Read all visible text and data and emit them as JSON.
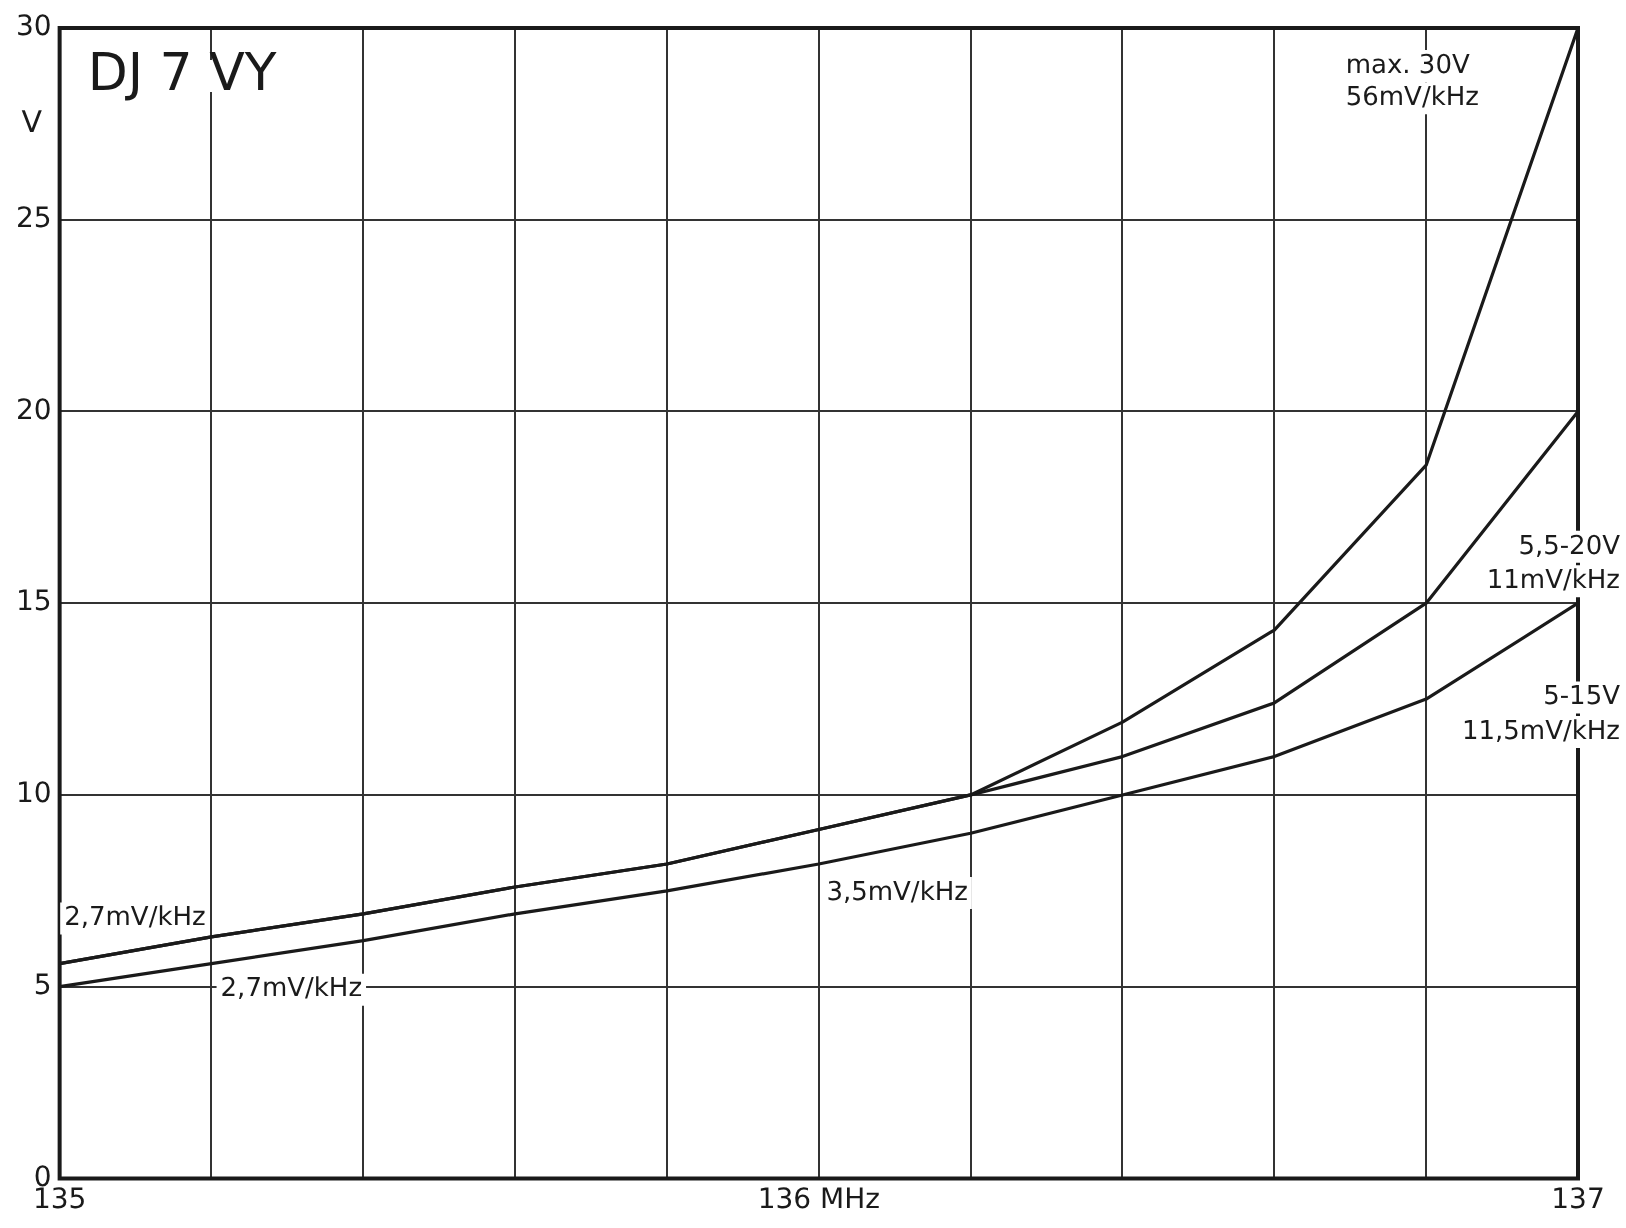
{
  "chart_data": {
    "type": "line",
    "title": "DJ 7 VY",
    "ylabel": "V",
    "x": [
      135,
      135.2,
      135.4,
      135.6,
      135.8,
      136,
      136.2,
      136.4,
      136.6,
      136.8,
      137
    ],
    "series": [
      {
        "color": "#1a1a1a",
        "values": [
          5.6,
          6.3,
          6.9,
          7.6,
          8.2,
          9.1,
          10,
          11.9,
          14.3,
          18.6,
          30
        ]
      },
      {
        "color": "#1a1a1a",
        "values": [
          5.6,
          6.3,
          6.9,
          7.6,
          8.2,
          9.1,
          10,
          11,
          12.4,
          15,
          20
        ]
      },
      {
        "color": "#1a1a1a",
        "values": [
          5,
          5.6,
          6.2,
          6.9,
          7.5,
          8.2,
          9,
          10,
          11,
          12.5,
          15
        ]
      }
    ],
    "xlim": [
      135,
      137
    ],
    "xticks": [
      135,
      {
        "value": 135.2,
        "label": null
      },
      {
        "value": 135.4,
        "label": null
      },
      {
        "value": 135.6,
        "label": null
      },
      {
        "value": 135.8,
        "label": null
      },
      {
        "value": 136,
        "label": "136 MHz"
      },
      {
        "value": 136.2,
        "label": null
      },
      {
        "value": 136.4,
        "label": null
      },
      {
        "value": 136.6,
        "label": null
      },
      {
        "value": 136.8,
        "label": null
      },
      137
    ],
    "ylim": [
      0,
      30
    ],
    "yticks": [
      0,
      5,
      10,
      15,
      20,
      25,
      30
    ],
    "grid": true,
    "legend": false,
    "marker": "none",
    "line_style": "solid",
    "annotations": [
      "max. 30V",
      "56mV/kHz",
      "5,5-20V",
      "11mV/kHz",
      "5-15V",
      "11,5mV/kHz",
      "2,7mV/kHz",
      "2,7mV/kHz",
      "3,5mV/kHz"
    ]
  }
}
